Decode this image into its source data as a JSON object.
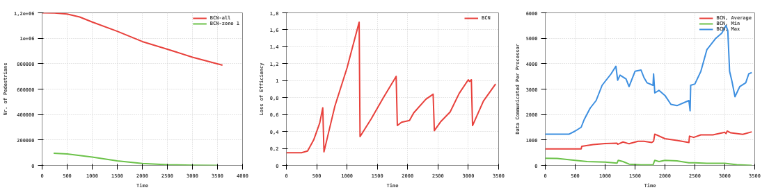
{
  "chart_data": [
    {
      "type": "line",
      "xlabel": "Time",
      "ylabel": "Nr. of Pedestrians",
      "xlim": [
        0,
        4000
      ],
      "xticks": [
        0,
        500,
        1000,
        1500,
        2000,
        2500,
        3000,
        3500,
        4000
      ],
      "ylim": [
        0,
        1200000
      ],
      "yticks": [
        0,
        200000,
        400000,
        600000,
        800000,
        {
          "value": 1000000,
          "label": "1e+06"
        },
        {
          "value": 1200000,
          "label": "1,2e+06"
        }
      ],
      "grid": true,
      "legend": "top right",
      "series": [
        {
          "name": "BCN-all",
          "color": "#e8413c",
          "x": [
            0,
            250,
            500,
            750,
            1000,
            1500,
            2000,
            2500,
            3000,
            3600
          ],
          "values": [
            1200000,
            1198000,
            1190000,
            1167000,
            1128000,
            1055000,
            974000,
            914000,
            851000,
            788000
          ]
        },
        {
          "name": "BCN-zone 1",
          "color": "#6cc24a",
          "x": [
            230,
            500,
            1000,
            1500,
            2000,
            2500,
            3000,
            3500
          ],
          "values": [
            95000,
            90000,
            65000,
            35000,
            15000,
            6000,
            2000,
            0
          ]
        }
      ]
    },
    {
      "type": "line",
      "xlabel": "Time",
      "ylabel": "Loss of Efficiency",
      "xlim": [
        0,
        3500
      ],
      "xticks": [
        0,
        500,
        1000,
        1500,
        2000,
        2500,
        3000,
        3500
      ],
      "ylim": [
        0,
        1.8
      ],
      "yticks": [
        0,
        {
          "value": 0.2,
          "label": "0,2"
        },
        {
          "value": 0.4,
          "label": "0,4"
        },
        {
          "value": 0.6,
          "label": "0,6"
        },
        {
          "value": 0.8,
          "label": "0,8"
        },
        1,
        {
          "value": 1.2,
          "label": "1,2"
        },
        {
          "value": 1.4,
          "label": "1,4"
        },
        {
          "value": 1.6,
          "label": "1,6"
        },
        {
          "value": 1.8,
          "label": "1,8"
        }
      ],
      "grid": true,
      "legend": "top right",
      "series": [
        {
          "name": "BCN",
          "color": "#e8413c",
          "x": [
            0,
            250,
            350,
            450,
            550,
            600,
            620,
            700,
            800,
            1000,
            1200,
            1215,
            1400,
            1600,
            1810,
            1830,
            1900,
            2030,
            2100,
            2300,
            2420,
            2440,
            2550,
            2700,
            2850,
            3000,
            3020,
            3050,
            3070,
            3250,
            3450
          ],
          "values": [
            0.15,
            0.15,
            0.17,
            0.3,
            0.5,
            0.68,
            0.16,
            0.4,
            0.7,
            1.15,
            1.69,
            0.34,
            0.55,
            0.8,
            1.05,
            0.47,
            0.51,
            0.53,
            0.62,
            0.78,
            0.84,
            0.41,
            0.52,
            0.63,
            0.85,
            1.01,
            0.99,
            1.01,
            0.47,
            0.76,
            0.96
          ]
        }
      ]
    },
    {
      "type": "line",
      "xlabel": "Time",
      "ylabel": "Data Communicated Per Processor",
      "xlim": [
        0,
        3500
      ],
      "xticks": [
        0,
        500,
        1000,
        1500,
        2000,
        2500,
        3000,
        3500
      ],
      "ylim": [
        0,
        6000
      ],
      "yticks": [
        0,
        1000,
        2000,
        3000,
        4000,
        5000,
        6000
      ],
      "grid": true,
      "legend": "top right",
      "series": [
        {
          "name": "BCN, Average",
          "color": "#e8413c",
          "x": [
            0,
            600,
            610,
            800,
            1000,
            1200,
            1210,
            1300,
            1400,
            1550,
            1650,
            1780,
            1810,
            1830,
            2000,
            2200,
            2400,
            2410,
            2480,
            2600,
            2800,
            3000,
            3020,
            3040,
            3100,
            3300,
            3450
          ],
          "values": [
            650,
            650,
            750,
            820,
            860,
            870,
            830,
            920,
            850,
            950,
            950,
            900,
            950,
            1230,
            1050,
            980,
            900,
            1150,
            1100,
            1200,
            1200,
            1300,
            1250,
            1350,
            1280,
            1220,
            1320
          ]
        },
        {
          "name": "BCN, Min",
          "color": "#6cc24a",
          "x": [
            0,
            200,
            500,
            700,
            1000,
            1200,
            1220,
            1300,
            1400,
            1600,
            1800,
            1830,
            1900,
            2000,
            2200,
            2400,
            2500,
            2700,
            3000,
            3200,
            3450
          ],
          "values": [
            280,
            270,
            200,
            150,
            130,
            90,
            200,
            150,
            50,
            20,
            20,
            200,
            150,
            200,
            180,
            100,
            100,
            80,
            80,
            30,
            0
          ]
        },
        {
          "name": "BCN, Max",
          "color": "#3d8fe0",
          "x": [
            0,
            400,
            500,
            600,
            650,
            750,
            850,
            950,
            1100,
            1180,
            1210,
            1250,
            1350,
            1400,
            1500,
            1600,
            1650,
            1700,
            1800,
            1810,
            1830,
            1900,
            2000,
            2100,
            2200,
            2400,
            2420,
            2430,
            2500,
            2600,
            2700,
            2850,
            2950,
            3020,
            3050,
            3080,
            3120,
            3170,
            3250,
            3350,
            3400,
            3450
          ],
          "values": [
            1230,
            1230,
            1350,
            1500,
            1800,
            2250,
            2550,
            3150,
            3600,
            3900,
            3350,
            3550,
            3400,
            3100,
            3700,
            3750,
            3450,
            3250,
            3150,
            3600,
            2850,
            2950,
            2750,
            2400,
            2350,
            2550,
            2150,
            3150,
            3200,
            3700,
            4550,
            5000,
            5200,
            5500,
            5300,
            3700,
            3300,
            2700,
            3100,
            3250,
            3600,
            3650
          ]
        }
      ]
    }
  ]
}
